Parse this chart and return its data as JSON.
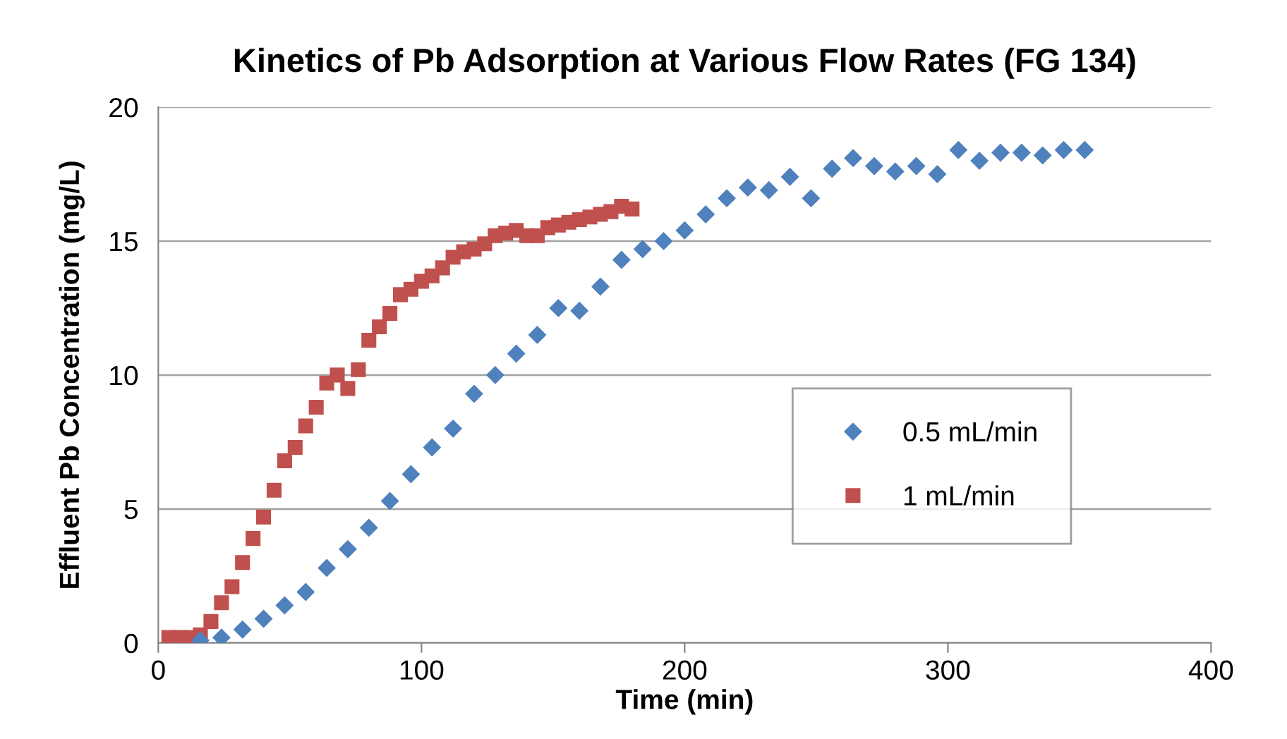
{
  "chart_data": {
    "type": "scatter",
    "title": "Kinetics of Pb Adsorption at Various Flow Rates (FG 134)",
    "xlabel": "Time (min)",
    "ylabel": "Effluent Pb Concentration (mg/L)",
    "xlim": [
      0,
      400
    ],
    "xticks": [
      0,
      100,
      200,
      300,
      400
    ],
    "ylim": [
      0,
      20
    ],
    "yticks": [
      0,
      5,
      10,
      15,
      20
    ],
    "grid": "y",
    "legend": "right",
    "series": [
      {
        "name": "0.5 mL/min",
        "color": "#4f81bd",
        "marker": "diamond",
        "x": [
          16,
          24,
          32,
          40,
          48,
          56,
          64,
          72,
          80,
          88,
          96,
          104,
          112,
          120,
          128,
          136,
          144,
          152,
          160,
          168,
          176,
          184,
          192,
          200,
          208,
          216,
          224,
          232,
          240,
          248,
          256,
          264,
          272,
          280,
          288,
          296,
          304,
          312,
          320,
          328,
          336,
          344,
          352
        ],
        "values": [
          0.1,
          0.2,
          0.5,
          0.9,
          1.4,
          1.9,
          2.8,
          3.5,
          4.3,
          5.3,
          6.3,
          7.3,
          8.0,
          9.3,
          10.0,
          10.8,
          11.5,
          12.5,
          12.4,
          13.3,
          14.3,
          14.7,
          15.0,
          15.4,
          16.0,
          16.6,
          17.0,
          16.9,
          17.4,
          16.6,
          17.7,
          18.1,
          17.8,
          17.6,
          17.8,
          17.5,
          18.4,
          18.0,
          18.3,
          18.3,
          18.2,
          18.4,
          18.4
        ]
      },
      {
        "name": "1 mL/min",
        "color": "#c0504d",
        "marker": "square",
        "x": [
          4,
          8,
          12,
          16,
          20,
          24,
          28,
          32,
          36,
          40,
          44,
          48,
          52,
          56,
          60,
          64,
          68,
          72,
          76,
          80,
          84,
          88,
          92,
          96,
          100,
          104,
          108,
          112,
          116,
          120,
          124,
          128,
          132,
          136,
          140,
          144,
          148,
          152,
          156,
          160,
          164,
          168,
          172,
          176,
          180
        ],
        "values": [
          0.2,
          0.2,
          0.2,
          0.3,
          0.8,
          1.5,
          2.1,
          3.0,
          3.9,
          4.7,
          5.7,
          6.8,
          7.3,
          8.1,
          8.8,
          9.7,
          10.0,
          9.5,
          10.2,
          11.3,
          11.8,
          12.3,
          13.0,
          13.2,
          13.5,
          13.7,
          14.0,
          14.4,
          14.6,
          14.7,
          14.9,
          15.2,
          15.3,
          15.4,
          15.2,
          15.2,
          15.5,
          15.6,
          15.7,
          15.8,
          15.9,
          16.0,
          16.1,
          16.3,
          16.2
        ]
      }
    ]
  }
}
